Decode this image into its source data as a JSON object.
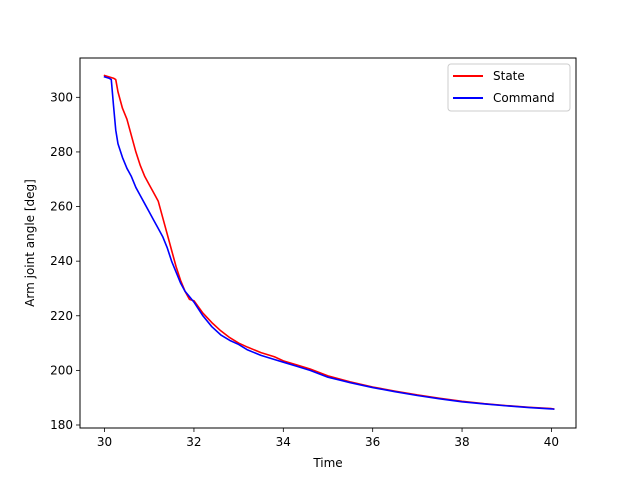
{
  "chart_data": {
    "type": "line",
    "title": "",
    "xlabel": "Time",
    "ylabel": "Arm joint angle [deg]",
    "xlim": [
      29.45,
      40.55
    ],
    "ylim": [
      178.9,
      314.4
    ],
    "xticks": [
      30,
      32,
      34,
      36,
      38,
      40
    ],
    "yticks": [
      180,
      200,
      220,
      240,
      260,
      280,
      300
    ],
    "legend_position": "top-right",
    "grid": false,
    "series": [
      {
        "name": "State",
        "color": "#ff0000",
        "x": [
          30.0,
          30.1,
          30.2,
          30.25,
          30.3,
          30.4,
          30.5,
          30.6,
          30.7,
          30.8,
          30.9,
          31.0,
          31.1,
          31.2,
          31.3,
          31.4,
          31.5,
          31.6,
          31.7,
          31.8,
          31.9,
          32.0,
          32.2,
          32.4,
          32.6,
          32.8,
          33.0,
          33.2,
          33.5,
          33.8,
          34.0,
          34.3,
          34.6,
          35.0,
          35.5,
          36.0,
          36.5,
          37.0,
          37.5,
          38.0,
          38.5,
          39.0,
          39.5,
          40.0,
          40.05
        ],
        "values": [
          308.0,
          307.5,
          307.0,
          306.5,
          302.0,
          296.0,
          292.0,
          286.0,
          280.0,
          275.0,
          271.0,
          268.0,
          265.0,
          262.0,
          256.0,
          250.0,
          244.0,
          238.0,
          233.0,
          229.0,
          226.0,
          225.5,
          221.0,
          217.5,
          214.5,
          212.0,
          210.0,
          208.5,
          206.5,
          205.0,
          203.5,
          202.0,
          200.5,
          198.0,
          195.8,
          193.9,
          192.4,
          191.0,
          189.8,
          188.7,
          187.8,
          187.1,
          186.5,
          186.0,
          185.9
        ]
      },
      {
        "name": "Command",
        "color": "#0000ff",
        "x": [
          30.0,
          30.1,
          30.15,
          30.2,
          30.25,
          30.3,
          30.4,
          30.5,
          30.6,
          30.7,
          30.8,
          30.9,
          31.0,
          31.1,
          31.2,
          31.3,
          31.4,
          31.5,
          31.6,
          31.7,
          31.8,
          31.9,
          32.0,
          32.2,
          32.4,
          32.6,
          32.8,
          33.0,
          33.2,
          33.5,
          33.8,
          34.0,
          34.3,
          34.6,
          35.0,
          35.5,
          36.0,
          36.5,
          37.0,
          37.5,
          38.0,
          38.5,
          39.0,
          39.5,
          40.0,
          40.05
        ],
        "values": [
          307.5,
          307.0,
          306.5,
          297.0,
          288.0,
          283.0,
          278.0,
          274.0,
          271.0,
          267.0,
          264.0,
          261.0,
          258.0,
          255.0,
          252.0,
          249.0,
          245.0,
          240.0,
          236.0,
          232.0,
          229.0,
          227.0,
          225.0,
          220.0,
          216.0,
          213.0,
          211.0,
          209.5,
          207.5,
          205.5,
          204.0,
          203.0,
          201.5,
          200.0,
          197.5,
          195.5,
          193.7,
          192.2,
          190.8,
          189.6,
          188.5,
          187.7,
          187.0,
          186.4,
          185.9,
          185.8
        ]
      }
    ]
  }
}
